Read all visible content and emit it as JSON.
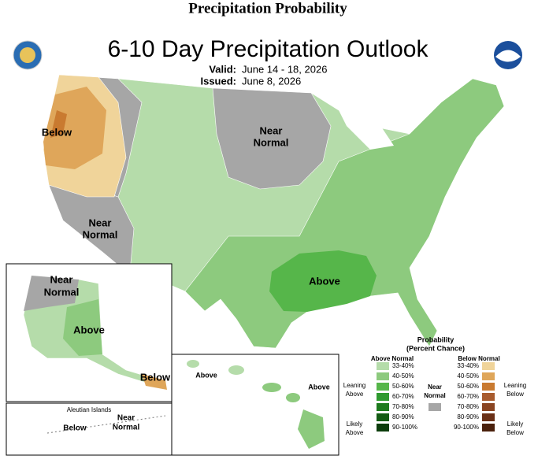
{
  "header": {
    "title": "Precipitation Probability",
    "map_title": "6-10 Day Precipitation Outlook",
    "valid_label": "Valid:",
    "valid": "June 14 - 18, 2026",
    "issued_label": "Issued:",
    "issued": "June 8, 2026"
  },
  "map_labels": {
    "conus_below": "Below",
    "conus_near_nw": [
      "Near",
      "Normal"
    ],
    "conus_near_sw": [
      "Near",
      "Normal"
    ],
    "conus_above": "Above",
    "alaska_near": [
      "Near",
      "Normal"
    ],
    "alaska_above": "Above",
    "alaska_below": "Below",
    "aleutian_title": "Aleutian Islands",
    "aleutian_below": "Below",
    "aleutian_near": [
      "Near",
      "Normal"
    ],
    "hawaii_above_1": "Above",
    "hawaii_above_2": "Above"
  },
  "legend": {
    "title": [
      "Probability",
      "(Percent Chance)"
    ],
    "above_title": "Above Normal",
    "below_title": "Below Normal",
    "near": [
      "Near",
      "Normal"
    ],
    "near_color": "#a6a6a6",
    "leaning_above": [
      "Leaning",
      "Above"
    ],
    "likely_above": [
      "Likely",
      "Above"
    ],
    "leaning_below": [
      "Leaning",
      "Below"
    ],
    "likely_below": [
      "Likely",
      "Below"
    ],
    "above": [
      {
        "label": "33-40%",
        "color": "#b5dcaa"
      },
      {
        "label": "40-50%",
        "color": "#8dca7e"
      },
      {
        "label": "50-60%",
        "color": "#56b64a"
      },
      {
        "label": "60-70%",
        "color": "#2f9a2f"
      },
      {
        "label": "70-80%",
        "color": "#1e7b1e"
      },
      {
        "label": "80-90%",
        "color": "#145c14"
      },
      {
        "label": "90-100%",
        "color": "#0c3d0c"
      }
    ],
    "below": [
      {
        "label": "33-40%",
        "color": "#f0d49a"
      },
      {
        "label": "40-50%",
        "color": "#dfa65a"
      },
      {
        "label": "50-60%",
        "color": "#c97a30"
      },
      {
        "label": "60-70%",
        "color": "#a85b2e"
      },
      {
        "label": "70-80%",
        "color": "#8a4522"
      },
      {
        "label": "80-90%",
        "color": "#6a3016"
      },
      {
        "label": "90-100%",
        "color": "#4a200c"
      }
    ]
  }
}
